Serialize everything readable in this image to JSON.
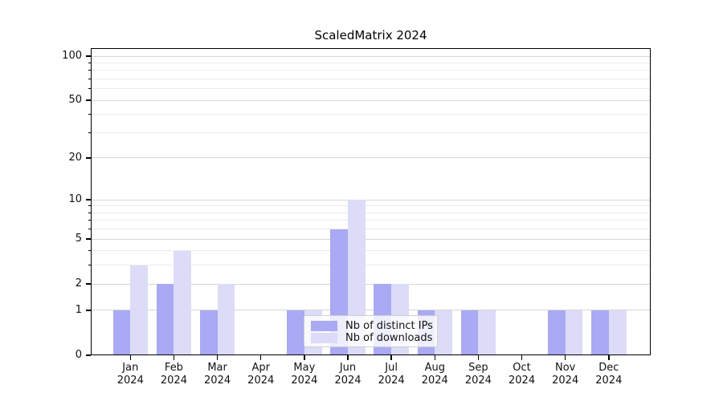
{
  "chart_data": {
    "type": "bar",
    "title": "ScaledMatrix 2024",
    "categories": [
      "Jan 2024",
      "Feb 2024",
      "Mar 2024",
      "Apr 2024",
      "May 2024",
      "Jun 2024",
      "Jul 2024",
      "Aug 2024",
      "Sep 2024",
      "Oct 2024",
      "Nov 2024",
      "Dec 2024"
    ],
    "series": [
      {
        "name": "Nb of distinct IPs",
        "color": "#a9a9f4",
        "values": [
          1,
          2,
          1,
          0,
          1,
          6,
          2,
          1,
          1,
          0,
          1,
          1
        ]
      },
      {
        "name": "Nb of downloads",
        "color": "#dcdcf8",
        "values": [
          3,
          4,
          2,
          0,
          1,
          10,
          2,
          1,
          1,
          0,
          1,
          1
        ]
      }
    ],
    "yscale": "log1p",
    "ylim": [
      0,
      113
    ],
    "y_major_ticks": [
      0,
      1,
      2,
      5,
      10,
      20,
      50,
      100
    ],
    "y_minor_gridlines": [
      3,
      4,
      6,
      7,
      8,
      9,
      30,
      40,
      60,
      70,
      80,
      90
    ],
    "grid": "on",
    "legend_position": "lower center inside"
  },
  "legend": {
    "items": [
      {
        "label": "Nb of distinct IPs"
      },
      {
        "label": "Nb of downloads"
      }
    ]
  },
  "colors": {
    "grid_major": "#d6d6d6",
    "grid_minor": "#ebebeb",
    "spine": "#000000",
    "background": "#ffffff",
    "legend_border": "#cfcfcf",
    "bar_distinct_ips": "#a9a9f4",
    "bar_downloads": "#dcdcf8"
  }
}
